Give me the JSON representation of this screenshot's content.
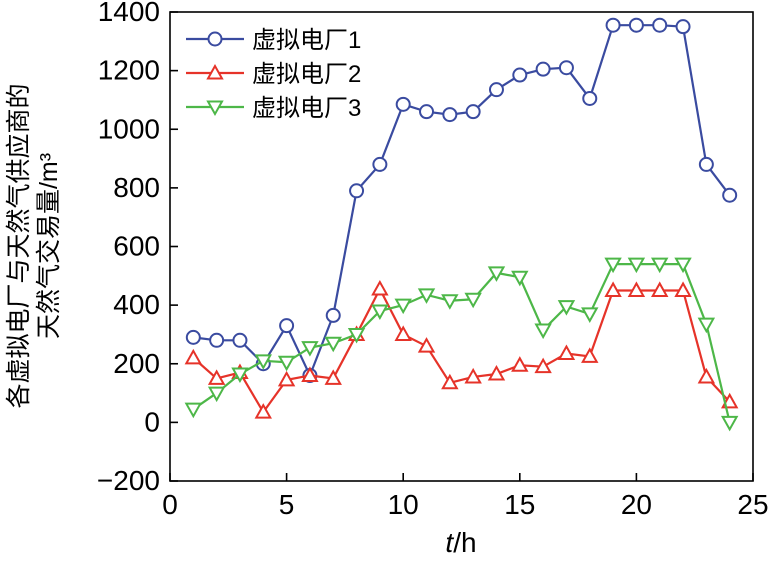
{
  "chart_data": {
    "type": "line",
    "title": "",
    "xlabel": "t/h",
    "ylabel_line1": "各虚拟电厂与天然气供应商的",
    "ylabel_line2": "天然气交易量/m³",
    "xlim": [
      0,
      25
    ],
    "ylim": [
      -200,
      1400
    ],
    "xticks": [
      0,
      5,
      10,
      15,
      20,
      25
    ],
    "yticks": [
      -200,
      0,
      200,
      400,
      600,
      800,
      1000,
      1200,
      1400
    ],
    "grid": false,
    "legend_position": "top-left",
    "x": [
      1,
      2,
      3,
      4,
      5,
      6,
      7,
      8,
      9,
      10,
      11,
      12,
      13,
      14,
      15,
      16,
      17,
      18,
      19,
      20,
      21,
      22,
      23,
      24
    ],
    "series": [
      {
        "name": "虚拟电厂1",
        "marker": "circle",
        "color": "#3a4ba0",
        "values": [
          290,
          280,
          280,
          200,
          330,
          160,
          365,
          790,
          880,
          1085,
          1060,
          1050,
          1060,
          1135,
          1185,
          1205,
          1210,
          1105,
          1355,
          1355,
          1355,
          1350,
          880,
          775
        ]
      },
      {
        "name": "虚拟电厂2",
        "marker": "triangle-up",
        "color": "#e63329",
        "values": [
          220,
          150,
          170,
          35,
          145,
          160,
          150,
          300,
          455,
          300,
          260,
          135,
          155,
          165,
          195,
          190,
          235,
          225,
          450,
          450,
          450,
          450,
          155,
          70
        ]
      },
      {
        "name": "虚拟电厂3",
        "marker": "triangle-down",
        "color": "#4db748",
        "values": [
          45,
          100,
          165,
          210,
          205,
          255,
          270,
          300,
          380,
          400,
          435,
          415,
          420,
          510,
          495,
          315,
          395,
          370,
          540,
          540,
          540,
          540,
          335,
          0
        ]
      }
    ]
  }
}
